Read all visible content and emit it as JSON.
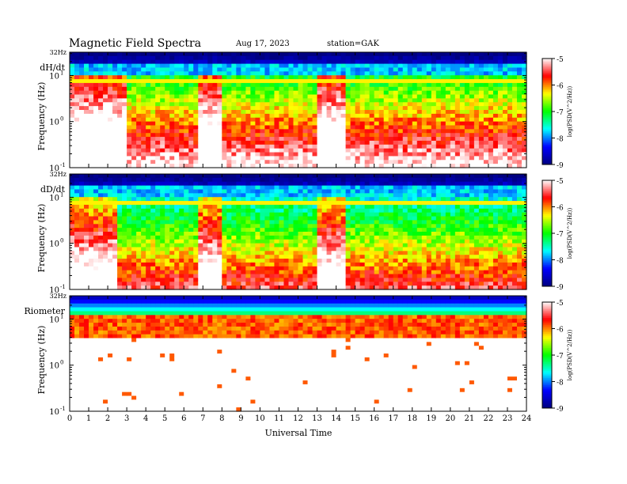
{
  "header": {
    "title": "Magnetic  Field  Spectra",
    "date": "Aug 17, 2023",
    "station": "station=GAK"
  },
  "chart_data": {
    "type": "heatmap",
    "xlabel": "Universal Time",
    "x_ticks": [
      "0",
      "1",
      "2",
      "3",
      "4",
      "5",
      "6",
      "7",
      "8",
      "9",
      "10",
      "11",
      "12",
      "13",
      "14",
      "15",
      "16",
      "17",
      "18",
      "19",
      "20",
      "21",
      "22",
      "23",
      "24"
    ],
    "xlim": [
      0,
      24
    ],
    "ylabel": "Frequency  (Hz)",
    "ylim": [
      0.1,
      32
    ],
    "y_scale": "log",
    "y_top_label": "32Hz",
    "y_ticks": [
      {
        "base": "10",
        "exp": "1",
        "value": 10
      },
      {
        "base": "10",
        "exp": "0",
        "value": 1
      },
      {
        "base": "10",
        "exp": "-1",
        "value": 0.1
      }
    ],
    "colorbar": {
      "label": "log(PSD(V^2/Hz))",
      "range": [
        -9,
        -5
      ],
      "ticks": [
        "-5",
        "-6",
        "-7",
        "-8",
        "-9"
      ],
      "colormap": [
        "#ffffff",
        "#ff0000",
        "#ffff00",
        "#00ff00",
        "#00ffff",
        "#0000ff",
        "#000080"
      ]
    },
    "panels": [
      {
        "name": "dH/dt",
        "noise_band_hz": 8,
        "bright_periods_ut": [
          [
            0,
            3
          ],
          [
            6.8,
            8
          ],
          [
            13,
            14.5
          ]
        ],
        "quiet_background_log_psd": -7
      },
      {
        "name": "dD/dt",
        "noise_band_hz": 8,
        "bright_periods_ut": [
          [
            0,
            2.5
          ],
          [
            6.8,
            8
          ],
          [
            13,
            14.5
          ]
        ],
        "quiet_background_log_psd": -7.5
      },
      {
        "name": "Riometer",
        "noise_band_hz": 8,
        "bright_periods_ut": [],
        "quiet_background_log_psd": -5
      }
    ]
  }
}
